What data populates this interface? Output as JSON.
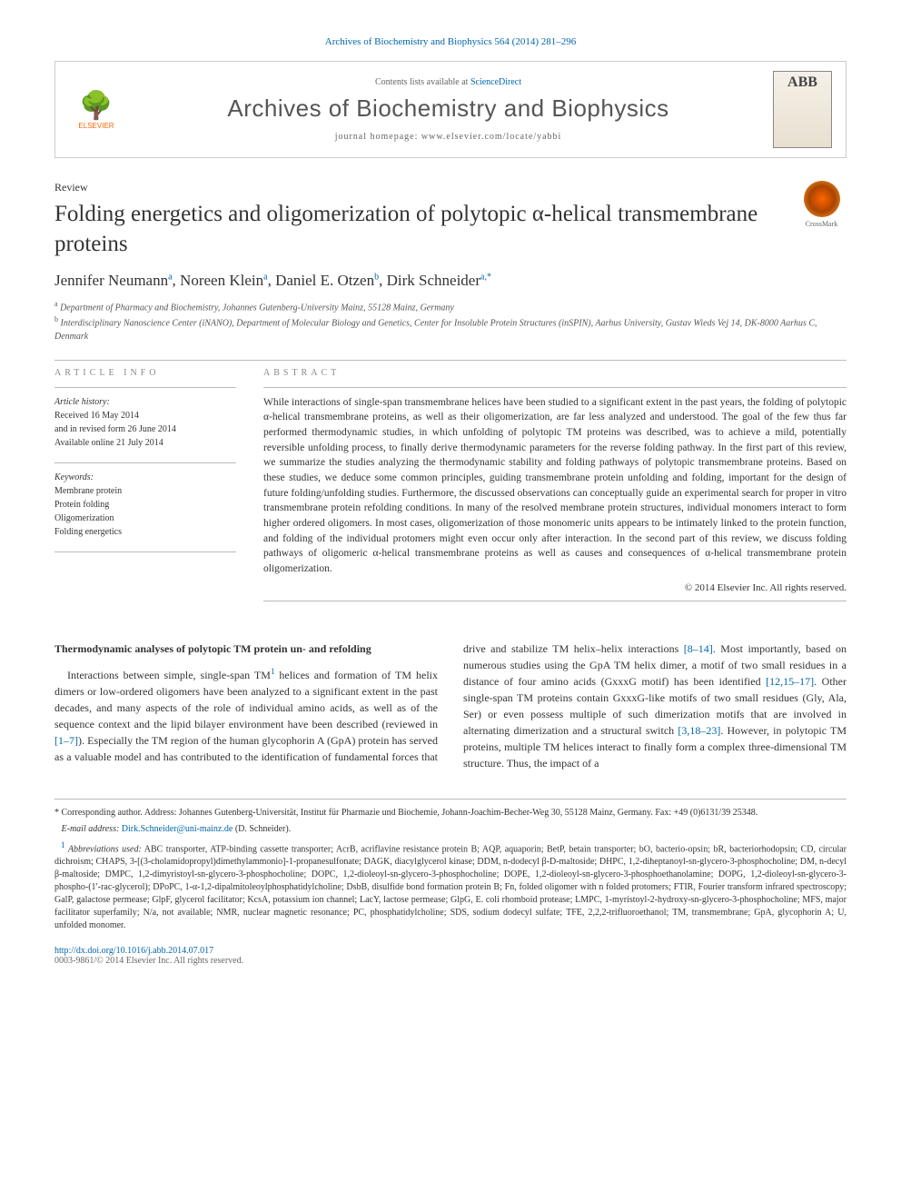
{
  "citation": "Archives of Biochemistry and Biophysics 564 (2014) 281–296",
  "header": {
    "publisher": "ELSEVIER",
    "contents_prefix": "Contents lists available at ",
    "contents_link": "ScienceDirect",
    "journal_name": "Archives of Biochemistry and Biophysics",
    "homepage_prefix": "journal homepage: ",
    "homepage_url": "www.elsevier.com/locate/yabbi",
    "cover_abb": "ABB"
  },
  "article": {
    "type": "Review",
    "title": "Folding energetics and oligomerization of polytopic α-helical transmembrane proteins",
    "crossmark": "CrossMark",
    "authors_html": "Jennifer Neumann|a|, Noreen Klein|a|, Daniel E. Otzen|b|, Dirk Schneider|a,*",
    "affiliations": [
      {
        "sup": "a",
        "text": "Department of Pharmacy and Biochemistry, Johannes Gutenberg-University Mainz, 55128 Mainz, Germany"
      },
      {
        "sup": "b",
        "text": "Interdisciplinary Nanoscience Center (iNANO), Department of Molecular Biology and Genetics, Center for Insoluble Protein Structures (inSPIN), Aarhus University, Gustav Wieds Vej 14, DK-8000 Aarhus C, Denmark"
      }
    ]
  },
  "info": {
    "heading": "ARTICLE INFO",
    "history_label": "Article history:",
    "history": [
      "Received 16 May 2014",
      "and in revised form 26 June 2014",
      "Available online 21 July 2014"
    ],
    "keywords_label": "Keywords:",
    "keywords": [
      "Membrane protein",
      "Protein folding",
      "Oligomerization",
      "Folding energetics"
    ]
  },
  "abstract": {
    "heading": "ABSTRACT",
    "text": "While interactions of single-span transmembrane helices have been studied to a significant extent in the past years, the folding of polytopic α-helical transmembrane proteins, as well as their oligomerization, are far less analyzed and understood. The goal of the few thus far performed thermodynamic studies, in which unfolding of polytopic TM proteins was described, was to achieve a mild, potentially reversible unfolding process, to finally derive thermodynamic parameters for the reverse folding pathway. In the first part of this review, we summarize the studies analyzing the thermodynamic stability and folding pathways of polytopic transmembrane proteins. Based on these studies, we deduce some common principles, guiding transmembrane protein unfolding and folding, important for the design of future folding/unfolding studies. Furthermore, the discussed observations can conceptually guide an experimental search for proper in vitro transmembrane protein refolding conditions. In many of the resolved membrane protein structures, individual monomers interact to form higher ordered oligomers. In most cases, oligomerization of those monomeric units appears to be intimately linked to the protein function, and folding of the individual protomers might even occur only after interaction. In the second part of this review, we discuss folding pathways of oligomeric α-helical transmembrane proteins as well as causes and consequences of α-helical transmembrane protein oligomerization.",
    "copyright": "© 2014 Elsevier Inc. All rights reserved."
  },
  "body": {
    "section_heading": "Thermodynamic analyses of polytopic TM protein un- and refolding",
    "col1_para": "Interactions between simple, single-span TM",
    "col1_fn": "1",
    "col1_para_cont": " helices and formation of TM helix dimers or low-ordered oligomers have been analyzed to a significant extent in the past decades, and many aspects of the role of individual amino acids, as well as of the sequence context and the lipid bilayer environment have been described (reviewed in ",
    "ref1": "[1–7]",
    "col1_para_end": "). Especially the TM region of the human glycophorin A (GpA) protein has served as a valuable model and has contributed to the",
    "col2_para": "identification of fundamental forces that drive and stabilize TM helix–helix interactions ",
    "ref2": "[8–14]",
    "col2_mid": ". Most importantly, based on numerous studies using the GpA TM helix dimer, a motif of two small residues in a distance of four amino acids (GxxxG motif) has been identified ",
    "ref3": "[12,15–17]",
    "col2_mid2": ". Other single-span TM proteins contain GxxxG-like motifs of two small residues (Gly, Ala, Ser) or even possess multiple of such dimerization motifs that are involved in alternating dimerization and a structural switch ",
    "ref4": "[3,18–23]",
    "col2_end": ". However, in polytopic TM proteins, multiple TM helices interact to finally form a complex three-dimensional TM structure. Thus, the impact of a"
  },
  "footnotes": {
    "corr_marker": "*",
    "corr": "Corresponding author. Address: Johannes Gutenberg-Universität, Institut für Pharmazie und Biochemie, Johann-Joachim-Becher-Weg 30, 55128 Mainz, Germany. Fax: +49 (0)6131/39 25348.",
    "email_label": "E-mail address:",
    "email": "Dirk.Schneider@uni-mainz.de",
    "email_who": "(D. Schneider).",
    "abbrev_marker": "1",
    "abbrev_label": "Abbreviations used:",
    "abbrev": "ABC transporter, ATP-binding cassette transporter; AcrB, acriflavine resistance protein B; AQP, aquaporin; BetP, betain transporter; bO, bacterio-opsin; bR, bacteriorhodopsin; CD, circular dichroism; CHAPS, 3-[(3-cholamidopropyl)dimethylammonio]-1-propanesulfonate; DAGK, diacylglycerol kinase; DDM, n-dodecyl β-D-maltoside; DHPC, 1,2-diheptanoyl-sn-glycero-3-phosphocholine; DM, n-decyl β-maltoside; DMPC, 1,2-dimyristoyl-sn-glycero-3-phosphocholine; DOPC, 1,2-dioleoyl-sn-glycero-3-phosphocholine; DOPE, 1,2-dioleoyl-sn-glycero-3-phosphoethanolamine; DOPG, 1,2-dioleoyl-sn-glycero-3-phospho-(1′-rac-glycerol); DPoPC, 1-α-1,2-dipalmitoleoylphosphatidylcholine; DsbB, disulfide bond formation protein B; Fn, folded oligomer with n folded protomers; FTIR, Fourier transform infrared spectroscopy; GalP, galactose permease; GlpF, glycerol facilitator; KcsA, potassium ion channel; LacY, lactose permease; GlpG, E. coli rhomboid protease; LMPC, 1-myristoyl-2-hydroxy-sn-glycero-3-phosphocholine; MFS, major facilitator superfamily; N/a, not available; NMR, nuclear magnetic resonance; PC, phosphatidylcholine; SDS, sodium dodecyl sulfate; TFE, 2,2,2-trifluoroethanol; TM, transmembrane; GpA, glycophorin A; U, unfolded monomer."
  },
  "footer": {
    "doi": "http://dx.doi.org/10.1016/j.abb.2014.07.017",
    "issn": "0003-9861/© 2014 Elsevier Inc. All rights reserved."
  },
  "colors": {
    "link": "#0066aa",
    "text": "#333333",
    "muted": "#666666",
    "border": "#bbbbbb",
    "elsevier": "#ff6600"
  }
}
